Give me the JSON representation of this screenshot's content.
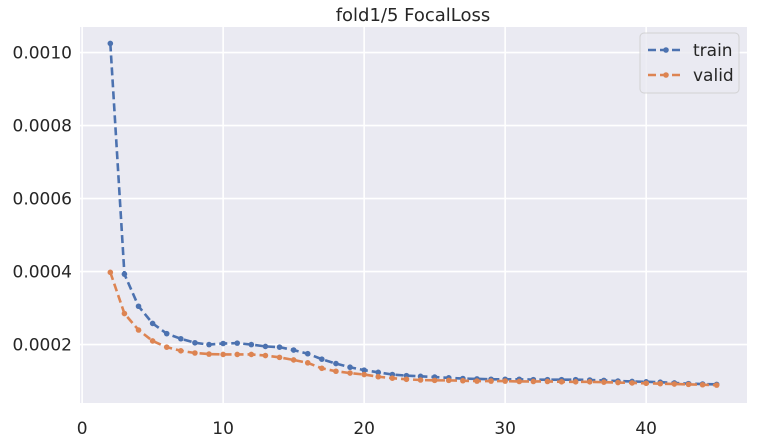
{
  "chart_data": {
    "type": "line",
    "title": "fold1/5 FocalLoss",
    "xlabel": "",
    "ylabel": "",
    "xlim": [
      -0.15,
      47.15
    ],
    "ylim": [
      4e-05,
      0.00107
    ],
    "xticks": [
      0,
      10,
      20,
      30,
      40
    ],
    "xtick_labels": [
      "0",
      "10",
      "20",
      "30",
      "40"
    ],
    "yticks": [
      0.0002,
      0.0004,
      0.0006,
      0.0008,
      0.001
    ],
    "ytick_labels": [
      "0.0002",
      "0.0004",
      "0.0006",
      "0.0008",
      "0.0010"
    ],
    "grid": true,
    "legend_position": "top-right",
    "x": [
      2,
      3,
      4,
      5,
      6,
      7,
      8,
      9,
      10,
      11,
      12,
      13,
      14,
      15,
      16,
      17,
      18,
      19,
      20,
      21,
      22,
      23,
      24,
      25,
      26,
      27,
      28,
      29,
      30,
      31,
      32,
      33,
      34,
      35,
      36,
      37,
      38,
      39,
      40,
      41,
      42,
      43,
      44,
      45
    ],
    "series": [
      {
        "name": "train",
        "color": "#4c72b0",
        "values": [
          0.001025,
          0.000393,
          0.000305,
          0.000258,
          0.00023,
          0.000216,
          0.000205,
          0.0002,
          0.000203,
          0.000204,
          0.0002,
          0.000195,
          0.000193,
          0.000185,
          0.000175,
          0.00016,
          0.000148,
          0.000138,
          0.00013,
          0.000124,
          0.000118,
          0.000115,
          0.000113,
          0.000111,
          0.000109,
          0.000107,
          0.000106,
          0.000105,
          0.000105,
          0.000105,
          0.000104,
          0.000104,
          0.000104,
          0.000104,
          0.000103,
          0.000102,
          0.0001,
          9.9e-05,
          9.8e-05,
          9.7e-05,
          9.5e-05,
          9.3e-05,
          9.2e-05,
          9.1e-05
        ]
      },
      {
        "name": "valid",
        "color": "#dd8452",
        "values": [
          0.000398,
          0.000285,
          0.00024,
          0.00021,
          0.000193,
          0.000183,
          0.000177,
          0.000174,
          0.000173,
          0.000173,
          0.000173,
          0.00017,
          0.000165,
          0.000158,
          0.00015,
          0.000135,
          0.000127,
          0.000122,
          0.000118,
          0.000112,
          0.000108,
          0.000105,
          0.000103,
          0.000102,
          0.000102,
          0.000101,
          0.0001,
          0.0001,
          0.0001,
          9.9e-05,
          9.9e-05,
          9.9e-05,
          9.8e-05,
          9.8e-05,
          9.8e-05,
          9.7e-05,
          9.6e-05,
          9.5e-05,
          9.4e-05,
          9.3e-05,
          9.2e-05,
          9.1e-05,
          9e-05,
          8.9e-05
        ]
      }
    ]
  }
}
